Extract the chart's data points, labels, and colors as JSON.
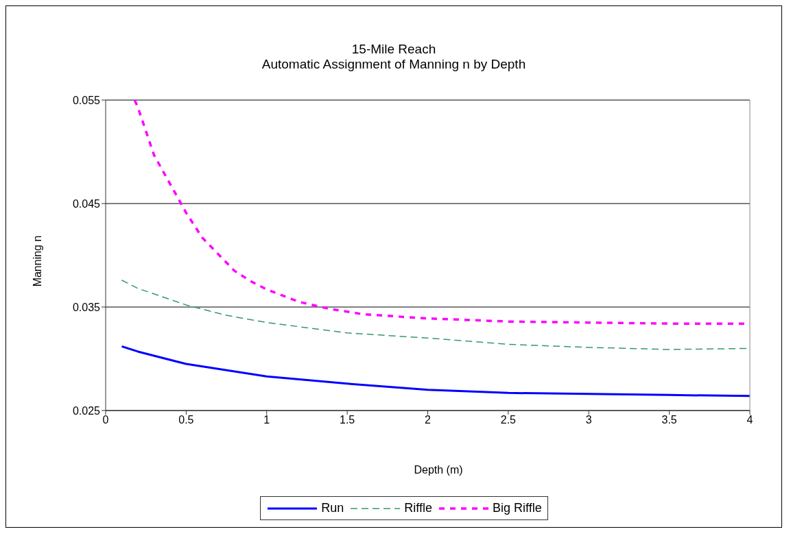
{
  "chart_data": {
    "type": "line",
    "title": "15-Mile Reach",
    "subtitle": "Automatic Assignment of Manning n by Depth",
    "xlabel": "Depth (m)",
    "ylabel": "Manning n",
    "xlim": [
      0,
      4
    ],
    "xticks": [
      0,
      0.5,
      1,
      1.5,
      2,
      2.5,
      3,
      3.5,
      4
    ],
    "ylim": [
      0.025,
      0.055
    ],
    "yticks": [
      0.025,
      0.035,
      0.045,
      0.055
    ],
    "grid": "y",
    "legend": "bottom",
    "marker": "none",
    "series": [
      {
        "name": "Run",
        "color": "#0000ff",
        "line_style": "solid",
        "x": [
          0.1,
          0.2,
          0.5,
          1,
          1.5,
          2,
          2.5,
          3,
          3.5,
          4
        ],
        "values": [
          0.0312,
          0.0307,
          0.0295,
          0.0283,
          0.0276,
          0.027,
          0.0267,
          0.0266,
          0.0265,
          0.0264
        ]
      },
      {
        "name": "Riffle",
        "color": "#339966",
        "line_style": "dashed",
        "x": [
          0.1,
          0.2,
          0.5,
          0.75,
          1,
          1.5,
          2,
          2.5,
          3,
          3.5,
          4
        ],
        "values": [
          0.0376,
          0.0368,
          0.0352,
          0.0342,
          0.0335,
          0.0325,
          0.032,
          0.0314,
          0.0311,
          0.0309,
          0.031
        ]
      },
      {
        "name": "Big Riffle",
        "color": "#ff00ff",
        "line_style": "dotted",
        "x": [
          0.18,
          0.2,
          0.3,
          0.4,
          0.5,
          0.6,
          0.7,
          0.8,
          0.9,
          1,
          1.2,
          1.4,
          1.6,
          2,
          2.5,
          3,
          3.5,
          4
        ],
        "values": [
          0.055,
          0.0543,
          0.0497,
          0.0469,
          0.0441,
          0.0417,
          0.0401,
          0.0385,
          0.0375,
          0.0367,
          0.0355,
          0.0348,
          0.0343,
          0.0339,
          0.0336,
          0.0335,
          0.0334,
          0.0334
        ]
      }
    ]
  }
}
